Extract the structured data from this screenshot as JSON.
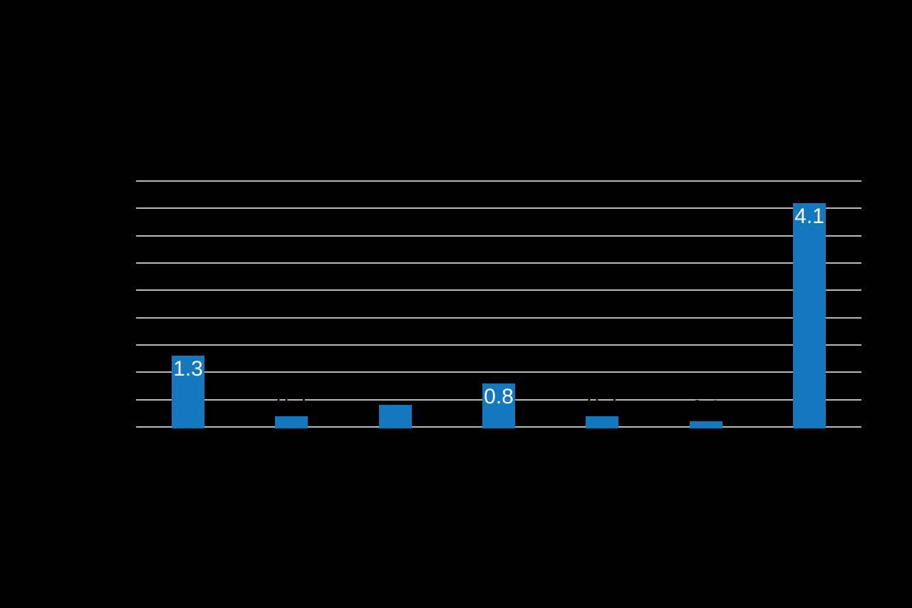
{
  "chart_data": {
    "type": "bar",
    "title": "",
    "categories": [
      "",
      "",
      "",
      "",
      "",
      "",
      ""
    ],
    "values": [
      1.3,
      0.2,
      0.4,
      0.8,
      0.2,
      0.1,
      4.1
    ],
    "bar_labels": [
      {
        "text": "1.3",
        "placement": "inside-top",
        "color": "#ffffff"
      },
      {
        "text": "0.2",
        "placement": "above",
        "color": "#000000"
      },
      {
        "text": "0.4",
        "placement": "above",
        "color": "#000000"
      },
      {
        "text": "0.8",
        "placement": "inside-top",
        "color": "#ffffff"
      },
      {
        "text": "0.2",
        "placement": "above",
        "color": "#000000"
      },
      {
        "text": "0.1",
        "placement": "above",
        "color": "#000000"
      },
      {
        "text": "4.1",
        "placement": "inside-top",
        "color": "#ffffff"
      }
    ],
    "ylim": [
      0,
      4.5
    ],
    "gridline_step": 0.5,
    "grid": true,
    "legend_position": "none",
    "xlabel": "",
    "ylabel": "",
    "colors": {
      "bar": "#1478be",
      "gridline": "#b9b9b9",
      "background": "#000000",
      "label_inside": "#ffffff",
      "label_above": "#000000"
    }
  }
}
